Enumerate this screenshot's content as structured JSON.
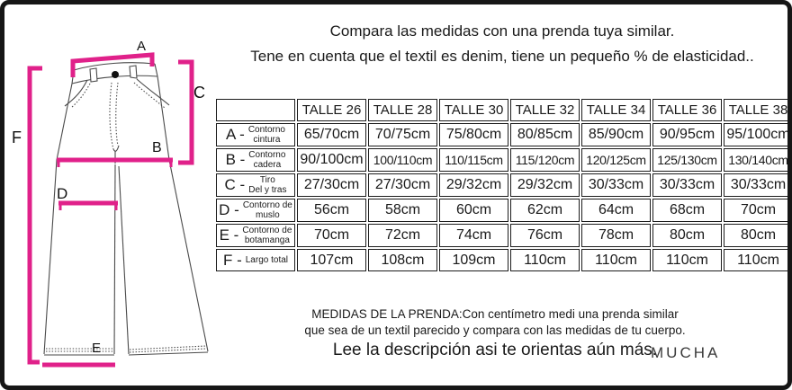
{
  "accent_color": "#e0218a",
  "title": {
    "line1": "Compara las medidas con una prenda tuya similar.",
    "line2": "Tene en cuenta que el textil es denim, tiene un pequeño % de elasticidad.."
  },
  "diagram": {
    "marks": {
      "a": "A",
      "b": "B",
      "c": "C",
      "d": "D",
      "e": "E",
      "f": "F"
    }
  },
  "table": {
    "columns": [
      "",
      "TALLE 26",
      "TALLE 28",
      "TALLE 30",
      "TALLE 32",
      "TALLE 34",
      "TALLE 36",
      "TALLE 38"
    ],
    "rows": [
      {
        "letter": "A -",
        "name": [
          "Contorno",
          "cintura"
        ],
        "values": [
          "65/70cm",
          "70/75cm",
          "75/80cm",
          "80/85cm",
          "85/90cm",
          "90/95cm",
          "95/100cm"
        ]
      },
      {
        "letter": "B -",
        "name": [
          "Contorno",
          "cadera"
        ],
        "values": [
          "90/100cm",
          "100/110cm",
          "110/115cm",
          "115/120cm",
          "120/125cm",
          "125/130cm",
          "130/140cm"
        ]
      },
      {
        "letter": "C -",
        "name": [
          "Tiro",
          "Del y tras"
        ],
        "values": [
          "27/30cm",
          "27/30cm",
          "29/32cm",
          "29/32cm",
          "30/33cm",
          "30/33cm",
          "30/33cm"
        ]
      },
      {
        "letter": "D -",
        "name": [
          "Contorno de",
          "muslo"
        ],
        "values": [
          "56cm",
          "58cm",
          "60cm",
          "62cm",
          "64cm",
          "68cm",
          "70cm"
        ]
      },
      {
        "letter": "E -",
        "name": [
          "Contorno de",
          "botamanga"
        ],
        "values": [
          "70cm",
          "72cm",
          "74cm",
          "76cm",
          "78cm",
          "80cm",
          "80cm"
        ]
      },
      {
        "letter": "F -",
        "name": [
          "Largo total"
        ],
        "values": [
          "107cm",
          "108cm",
          "109cm",
          "110cm",
          "110cm",
          "110cm",
          "110cm"
        ]
      }
    ]
  },
  "footer": {
    "line1": "MEDIDAS DE LA PRENDA:Con centímetro medi una prenda similar",
    "line2": "que sea de un textil parecido y compara con las medidas de tu cuerpo.",
    "line3": "Lee la descripción asi te orientas aún más.",
    "brand": "MUCHA"
  }
}
